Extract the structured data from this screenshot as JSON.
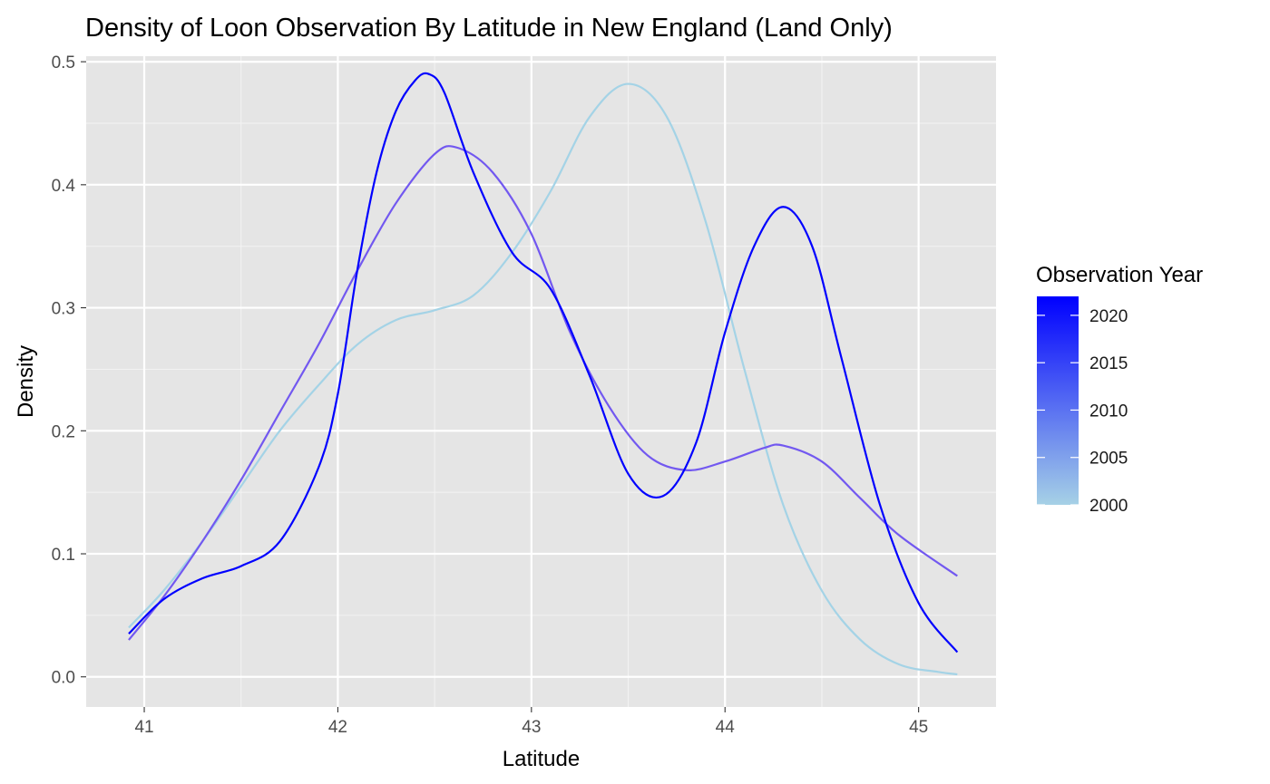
{
  "chart_data": {
    "type": "line",
    "title": "Density of Loon Observation By Latitude in New England (Land Only)",
    "xlabel": "Latitude",
    "ylabel": "Density",
    "xlim": [
      40.7,
      45.4
    ],
    "ylim": [
      -0.0245,
      0.5045
    ],
    "x_ticks": [
      41,
      42,
      43,
      44,
      45
    ],
    "x_tick_labels": [
      "41",
      "42",
      "43",
      "44",
      "45"
    ],
    "y_ticks": [
      0.0,
      0.1,
      0.2,
      0.3,
      0.4,
      0.5
    ],
    "y_tick_labels": [
      "0.0",
      "0.1",
      "0.2",
      "0.3",
      "0.4",
      "0.5"
    ],
    "grid": true,
    "legend": {
      "title": "Observation Year",
      "type": "colorbar",
      "position": "right",
      "breaks": [
        2020,
        2015,
        2010,
        2005,
        2000
      ],
      "labels": [
        "2020",
        "2015",
        "2010",
        "2005",
        "2000"
      ],
      "range": [
        2000,
        2022
      ],
      "color_low": "#a6d1e6",
      "color_high": "#0000ff"
    },
    "series": [
      {
        "year": 2000,
        "color": "#a4d3e6",
        "x": [
          40.92,
          41.1,
          41.3,
          41.5,
          41.7,
          41.9,
          42.1,
          42.3,
          42.5,
          42.7,
          42.9,
          43.1,
          43.3,
          43.5,
          43.7,
          43.9,
          44.1,
          44.3,
          44.5,
          44.7,
          44.9,
          45.1,
          45.2
        ],
        "y": [
          0.04,
          0.07,
          0.11,
          0.155,
          0.2,
          0.237,
          0.27,
          0.29,
          0.298,
          0.31,
          0.345,
          0.395,
          0.455,
          0.482,
          0.455,
          0.37,
          0.25,
          0.14,
          0.07,
          0.03,
          0.01,
          0.004,
          0.002
        ]
      },
      {
        "year": 2010,
        "color": "#7258f0",
        "x": [
          40.92,
          41.1,
          41.3,
          41.5,
          41.7,
          41.9,
          42.1,
          42.3,
          42.5,
          42.62,
          42.8,
          43.0,
          43.2,
          43.4,
          43.6,
          43.8,
          44.0,
          44.2,
          44.3,
          44.5,
          44.7,
          44.9,
          45.2
        ],
        "y": [
          0.03,
          0.065,
          0.11,
          0.16,
          0.215,
          0.27,
          0.33,
          0.385,
          0.425,
          0.43,
          0.41,
          0.36,
          0.28,
          0.22,
          0.18,
          0.168,
          0.175,
          0.186,
          0.188,
          0.175,
          0.145,
          0.115,
          0.082
        ]
      },
      {
        "year": 2021,
        "color": "#0000ff",
        "x": [
          40.92,
          41.1,
          41.3,
          41.5,
          41.7,
          41.9,
          42.0,
          42.1,
          42.2,
          42.3,
          42.4,
          42.47,
          42.55,
          42.7,
          42.9,
          43.1,
          43.3,
          43.5,
          43.68,
          43.85,
          44.0,
          44.15,
          44.3,
          44.45,
          44.6,
          44.8,
          45.0,
          45.2
        ],
        "y": [
          0.035,
          0.063,
          0.08,
          0.09,
          0.11,
          0.17,
          0.23,
          0.33,
          0.41,
          0.46,
          0.485,
          0.49,
          0.475,
          0.41,
          0.345,
          0.315,
          0.245,
          0.165,
          0.147,
          0.19,
          0.28,
          0.35,
          0.382,
          0.35,
          0.26,
          0.14,
          0.06,
          0.02
        ]
      }
    ]
  }
}
